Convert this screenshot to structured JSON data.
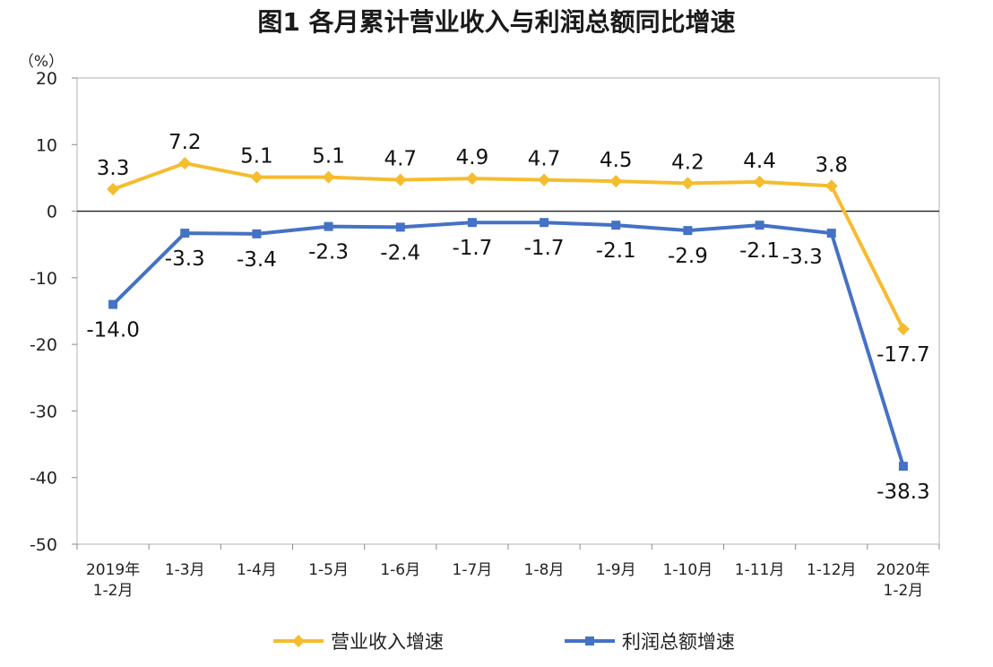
{
  "chart_data": {
    "type": "line",
    "title": "图1  各月累计营业收入与利润总额同比增速",
    "ylabel": "（%）",
    "ylim": [
      -50,
      20
    ],
    "yticks": [
      "20",
      "10",
      "0",
      "-10",
      "-20",
      "-30",
      "-40",
      "-50"
    ],
    "categories": [
      [
        "2019年",
        "1-2月"
      ],
      [
        "1-3月"
      ],
      [
        "1-4月"
      ],
      [
        "1-5月"
      ],
      [
        "1-6月"
      ],
      [
        "1-7月"
      ],
      [
        "1-8月"
      ],
      [
        "1-9月"
      ],
      [
        "1-10月"
      ],
      [
        "1-11月"
      ],
      [
        "1-12月"
      ],
      [
        "2020年",
        "1-2月"
      ]
    ],
    "series": [
      {
        "name": "营业收入增速",
        "color": "#F5BC2E",
        "marker": "diamond",
        "values": [
          3.3,
          7.2,
          5.1,
          5.1,
          4.7,
          4.9,
          4.7,
          4.5,
          4.2,
          4.4,
          3.8,
          -17.7
        ],
        "labels": [
          "3.3",
          "7.2",
          "5.1",
          "5.1",
          "4.7",
          "4.9",
          "4.7",
          "4.5",
          "4.2",
          "4.4",
          "3.8",
          "-17.7"
        ],
        "label_side": [
          "above",
          "above",
          "above",
          "above",
          "above",
          "above",
          "above",
          "above",
          "above",
          "above",
          "above",
          "below"
        ]
      },
      {
        "name": "利润总额增速",
        "color": "#4472C4",
        "marker": "square",
        "values": [
          -14.0,
          -3.3,
          -3.4,
          -2.3,
          -2.4,
          -1.7,
          -1.7,
          -2.1,
          -2.9,
          -2.1,
          -3.3,
          -38.3
        ],
        "labels": [
          "-14.0",
          "-3.3",
          "-3.4",
          "-2.3",
          "-2.4",
          "-1.7",
          "-1.7",
          "-2.1",
          "-2.9",
          "-2.1",
          "-3.3",
          "-38.3"
        ],
        "label_side": [
          "below",
          "below",
          "below",
          "below",
          "below",
          "below",
          "below",
          "below",
          "below",
          "below",
          "left",
          "below"
        ]
      }
    ],
    "legend": {
      "position": "bottom-center"
    },
    "grid": false
  }
}
